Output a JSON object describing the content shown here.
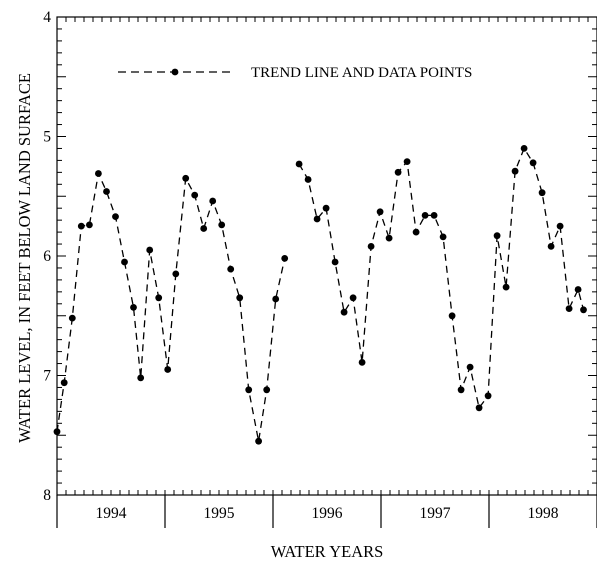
{
  "chart_data": {
    "type": "line",
    "title": "",
    "xlabel": "WATER YEARS",
    "ylabel": "WATER LEVEL, IN FEET BELOW LAND SURFACE",
    "y_inverted": true,
    "ylim": [
      4,
      8
    ],
    "y_ticks": [
      "4",
      "5",
      "6",
      "7",
      "8"
    ],
    "x_unit": "month",
    "xlim": [
      0,
      60
    ],
    "x_year_labels": [
      "1994",
      "1995",
      "1996",
      "1997",
      "1998"
    ],
    "legend": {
      "label": "TREND LINE AND DATA POINTS",
      "position": "top"
    },
    "line_style": "dashed",
    "marker": "circle",
    "grid": false,
    "series": [
      {
        "name": "TREND LINE AND DATA POINTS",
        "points": [
          [
            0.0,
            7.47
          ],
          [
            0.8,
            7.06
          ],
          [
            1.7,
            6.52
          ],
          [
            2.7,
            5.75
          ],
          [
            3.6,
            5.74
          ],
          [
            4.6,
            5.31
          ],
          [
            5.5,
            5.46
          ],
          [
            6.5,
            5.67
          ],
          [
            7.5,
            6.05
          ],
          [
            8.5,
            6.43
          ],
          [
            9.3,
            7.02
          ],
          [
            10.3,
            5.95
          ],
          [
            11.3,
            6.35
          ],
          [
            12.3,
            6.95
          ],
          [
            13.2,
            6.15
          ],
          [
            14.3,
            5.35
          ],
          [
            15.3,
            5.49
          ],
          [
            16.3,
            5.77
          ],
          [
            17.3,
            5.54
          ],
          [
            18.3,
            5.74
          ],
          [
            19.3,
            6.11
          ],
          [
            20.3,
            6.35
          ],
          [
            21.3,
            7.12
          ],
          [
            22.4,
            7.55
          ],
          [
            23.3,
            7.12
          ],
          [
            24.3,
            6.36
          ],
          [
            25.3,
            6.02
          ]
        ]
      },
      {
        "name": "TREND LINE AND DATA POINTS",
        "points": [
          [
            26.9,
            5.23
          ],
          [
            27.9,
            5.36
          ],
          [
            28.9,
            5.69
          ],
          [
            29.9,
            5.6
          ],
          [
            30.9,
            6.05
          ],
          [
            31.9,
            6.47
          ],
          [
            32.9,
            6.35
          ],
          [
            33.9,
            6.89
          ],
          [
            34.9,
            5.92
          ],
          [
            35.9,
            5.63
          ],
          [
            36.9,
            5.85
          ],
          [
            37.9,
            5.3
          ],
          [
            38.9,
            5.21
          ],
          [
            39.9,
            5.8
          ],
          [
            40.9,
            5.66
          ],
          [
            41.9,
            5.66
          ],
          [
            42.9,
            5.84
          ],
          [
            43.9,
            6.5
          ],
          [
            44.9,
            7.12
          ],
          [
            45.9,
            6.93
          ],
          [
            46.9,
            7.27
          ],
          [
            47.9,
            7.17
          ],
          [
            48.9,
            5.83
          ],
          [
            49.9,
            6.26
          ],
          [
            50.9,
            5.29
          ],
          [
            51.9,
            5.1
          ],
          [
            52.9,
            5.22
          ],
          [
            53.9,
            5.47
          ],
          [
            54.9,
            5.92
          ],
          [
            55.9,
            5.75
          ],
          [
            56.9,
            6.44
          ],
          [
            57.9,
            6.28
          ],
          [
            58.5,
            6.45
          ]
        ]
      }
    ]
  }
}
